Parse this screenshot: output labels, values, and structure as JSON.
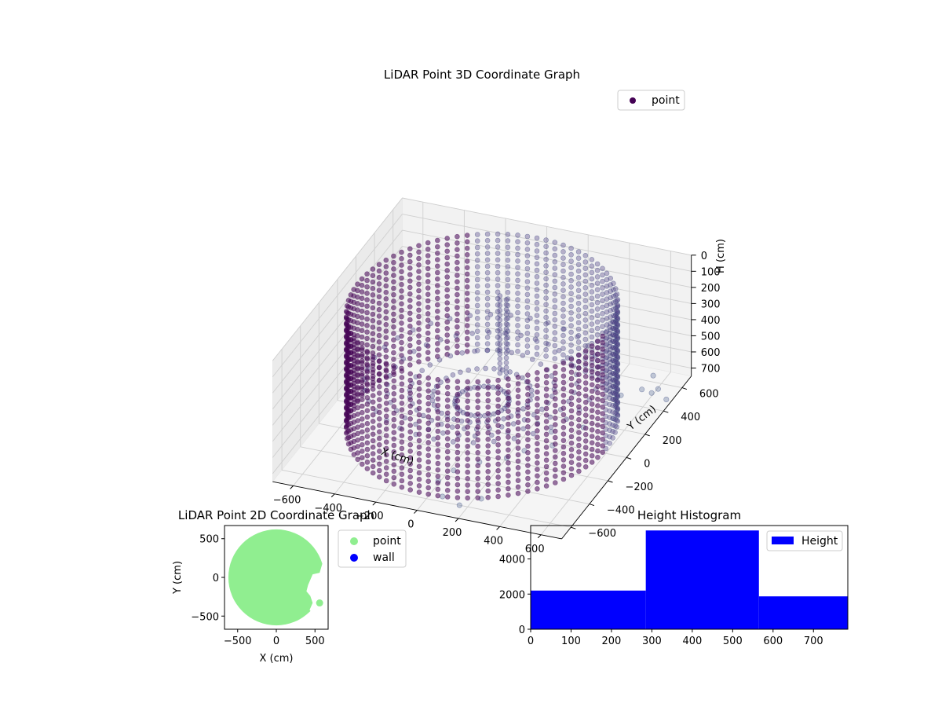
{
  "chart_data": [
    {
      "type": "scatter3d",
      "title": "LiDAR Point 3D Coordinate Graph",
      "xlabel": "X (cm)",
      "ylabel": "Y (cm)",
      "zlabel": "H (cm)",
      "xlim": [
        -700,
        700
      ],
      "ylim": [
        -700,
        700
      ],
      "zlim": [
        0,
        750
      ],
      "z_inverted": true,
      "xticks": [
        -600,
        -400,
        -200,
        0,
        200,
        400,
        600
      ],
      "yticks": [
        -600,
        -400,
        -200,
        0,
        200,
        400,
        600
      ],
      "zticks": [
        0,
        100,
        200,
        300,
        400,
        500,
        600,
        700
      ],
      "legend": [
        {
          "label": "point",
          "color": "#440154"
        }
      ],
      "legend_position": "upper-right",
      "grid": true,
      "wall_radius": 600,
      "wall_height_range": [
        0,
        750
      ],
      "point_color": "#46337e",
      "outliers": [
        [
          640,
          300,
          560
        ],
        [
          660,
          360,
          620
        ],
        [
          700,
          430,
          700
        ],
        [
          620,
          520,
          720
        ],
        [
          560,
          600,
          710
        ],
        [
          480,
          430,
          730
        ],
        [
          520,
          260,
          740
        ],
        [
          420,
          160,
          750
        ],
        [
          300,
          80,
          750
        ],
        [
          350,
          -20,
          750
        ],
        [
          250,
          -100,
          750
        ],
        [
          200,
          -180,
          750
        ],
        [
          100,
          -250,
          750
        ],
        [
          20,
          -350,
          750
        ],
        [
          -10,
          -450,
          750
        ],
        [
          60,
          -560,
          750
        ],
        [
          160,
          -600,
          750
        ],
        [
          230,
          -520,
          750
        ]
      ]
    },
    {
      "type": "scatter",
      "title": "LiDAR Point 2D Coordinate Graph",
      "xlabel": "X (cm)",
      "ylabel": "Y (cm)",
      "xlim": [
        -670,
        670
      ],
      "ylim": [
        -670,
        670
      ],
      "xticks": [
        -500,
        0,
        500
      ],
      "yticks": [
        -500,
        0,
        500
      ],
      "series": [
        {
          "name": "point",
          "color": "#90ee90"
        },
        {
          "name": "wall",
          "color": "#0000ff"
        }
      ],
      "disc_radius": 620,
      "gap_outline": [
        [
          640,
          330
        ],
        [
          560,
          60
        ],
        [
          470,
          40
        ],
        [
          410,
          -100
        ],
        [
          390,
          -180
        ],
        [
          440,
          -240
        ],
        [
          470,
          -330
        ],
        [
          430,
          -420
        ],
        [
          480,
          -480
        ],
        [
          620,
          -560
        ]
      ]
    },
    {
      "type": "histogram",
      "title": "Height Histogram",
      "xlim": [
        0,
        785
      ],
      "ylim": [
        0,
        5900
      ],
      "xticks": [
        0,
        100,
        200,
        300,
        400,
        500,
        600,
        700
      ],
      "yticks": [
        0,
        2000,
        4000
      ],
      "bins": [
        {
          "start": 0,
          "end": 285,
          "count": 2200
        },
        {
          "start": 285,
          "end": 565,
          "count": 5620
        },
        {
          "start": 565,
          "end": 785,
          "count": 1870
        }
      ],
      "color": "#0000ff",
      "legend": [
        {
          "label": "Height",
          "color": "#0000ff"
        }
      ],
      "legend_position": "upper-right"
    }
  ]
}
